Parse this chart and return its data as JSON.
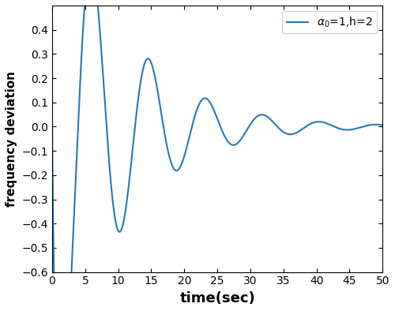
{
  "title": "",
  "xlabel": "time(sec)",
  "ylabel": "frequency deviation",
  "xlim": [
    0,
    50
  ],
  "ylim": [
    -0.6,
    0.5
  ],
  "xticks": [
    0,
    5,
    10,
    15,
    20,
    25,
    30,
    35,
    40,
    45,
    50
  ],
  "yticks": [
    -0.6,
    -0.5,
    -0.4,
    -0.3,
    -0.2,
    -0.1,
    0.0,
    0.1,
    0.2,
    0.3,
    0.4
  ],
  "line_color": "#2878b5",
  "line_width": 1.5,
  "legend_label": "α₀=1,h=2",
  "xlabel_fontsize": 13,
  "ylabel_fontsize": 11,
  "tick_fontsize": 10,
  "legend_fontsize": 10,
  "background_color": "#ffffff",
  "fig_width": 5.0,
  "fig_height": 3.94,
  "dpi": 100
}
